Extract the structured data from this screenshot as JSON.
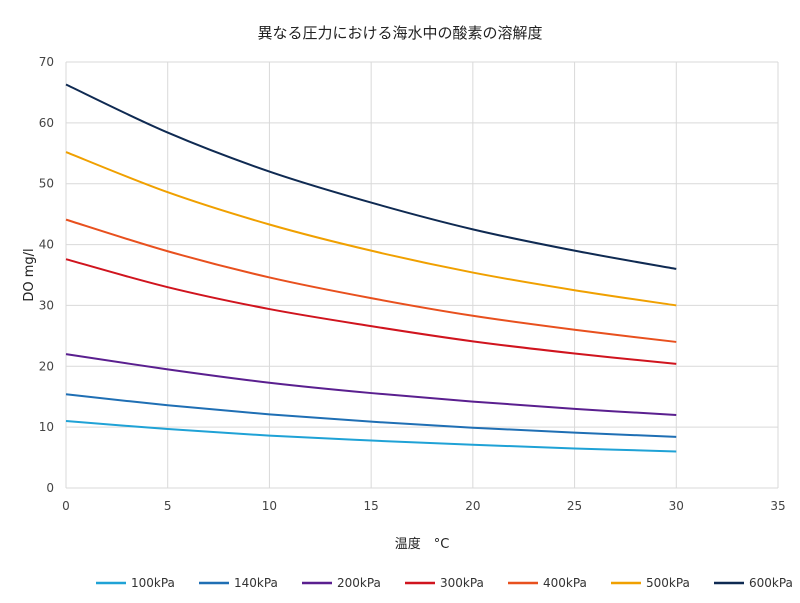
{
  "chart_data": {
    "type": "line",
    "title": "異なる圧力における海水中の酸素の溶解度",
    "xlabel": "温度　°C",
    "ylabel": "DO mg/l",
    "xlim": [
      0,
      35
    ],
    "ylim": [
      0,
      70
    ],
    "xticks": [
      0,
      5,
      10,
      15,
      20,
      25,
      30,
      35
    ],
    "yticks": [
      0,
      10,
      20,
      30,
      40,
      50,
      60,
      70
    ],
    "grid": true,
    "legend_position": "bottom",
    "x": [
      0,
      5,
      10,
      15,
      20,
      25,
      30
    ],
    "series": [
      {
        "name": "100kPa",
        "color": "#1FA2D6",
        "values": [
          11.0,
          9.7,
          8.6,
          7.8,
          7.1,
          6.5,
          6.0
        ]
      },
      {
        "name": "140kPa",
        "color": "#1F6FB4",
        "values": [
          15.4,
          13.6,
          12.1,
          10.9,
          9.9,
          9.1,
          8.4
        ]
      },
      {
        "name": "200kPa",
        "color": "#5A1F8F",
        "values": [
          22.0,
          19.5,
          17.3,
          15.6,
          14.2,
          13.0,
          12.0
        ]
      },
      {
        "name": "300kPa",
        "color": "#D0141E",
        "values": [
          37.6,
          33.0,
          29.4,
          26.6,
          24.1,
          22.1,
          20.4
        ]
      },
      {
        "name": "400kPa",
        "color": "#E8501E",
        "values": [
          44.1,
          38.9,
          34.6,
          31.2,
          28.3,
          26.0,
          24.0
        ]
      },
      {
        "name": "500kPa",
        "color": "#F0A000",
        "values": [
          55.2,
          48.6,
          43.3,
          39.0,
          35.4,
          32.5,
          30.0
        ]
      },
      {
        "name": "600kPa",
        "color": "#0F2A52",
        "values": [
          66.3,
          58.4,
          52.0,
          46.9,
          42.5,
          39.0,
          36.0
        ]
      }
    ]
  }
}
